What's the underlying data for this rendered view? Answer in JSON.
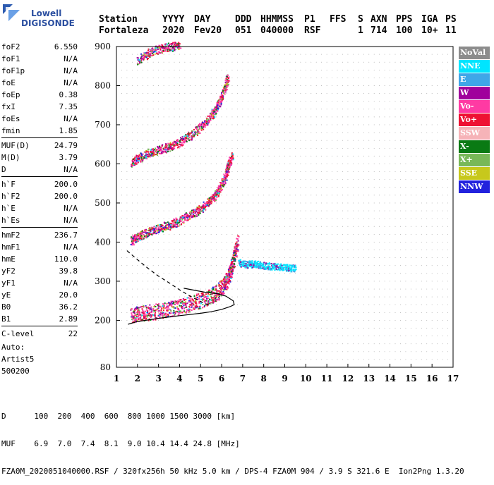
{
  "logo": {
    "line1": "Lowell",
    "line2": "DIGISONDE"
  },
  "header": {
    "row1": [
      "Station",
      "YYYY",
      "DAY",
      "DDD",
      "HHMMSS",
      "P1",
      "FFS",
      "S",
      "AXN",
      "PPS",
      "IGA",
      "PS"
    ],
    "row2": [
      "Fortaleza",
      "2020",
      "Fev20",
      "051",
      "040000",
      "RSF",
      "",
      "1",
      "714",
      "100",
      "10+",
      "11"
    ]
  },
  "params_groups": [
    [
      [
        "foF2",
        "6.550"
      ],
      [
        "foF1",
        "N/A"
      ],
      [
        "foF1p",
        "N/A"
      ],
      [
        "foE",
        "N/A"
      ],
      [
        "foEp",
        "0.38"
      ],
      [
        "fxI",
        "7.35"
      ],
      [
        "foEs",
        "N/A"
      ],
      [
        "fmin",
        "1.85"
      ]
    ],
    [
      [
        "MUF(D)",
        "24.79"
      ],
      [
        "M(D)",
        "3.79"
      ],
      [
        "D",
        "N/A"
      ]
    ],
    [
      [
        "h`F",
        "200.0"
      ],
      [
        "h`F2",
        "200.0"
      ],
      [
        "h`E",
        "N/A"
      ],
      [
        "h`Es",
        "N/A"
      ]
    ],
    [
      [
        "hmF2",
        "236.7"
      ],
      [
        "hmF1",
        "N/A"
      ],
      [
        "hmE",
        "110.0"
      ],
      [
        "yF2",
        "39.8"
      ],
      [
        "yF1",
        "N/A"
      ],
      [
        "yE",
        "20.0"
      ],
      [
        "B0",
        "36.2"
      ],
      [
        "B1",
        "2.89"
      ]
    ],
    [
      [
        "C-level",
        "22"
      ]
    ]
  ],
  "auto": [
    "Auto:",
    "Artist5",
    "500200"
  ],
  "legend": [
    {
      "label": "NoVal",
      "color": "#8c8c8c"
    },
    {
      "label": "NNE",
      "color": "#00e5ff"
    },
    {
      "label": "E",
      "color": "#3fa6e8"
    },
    {
      "label": "W",
      "color": "#a0009c"
    },
    {
      "label": "Vo-",
      "color": "#ff3aa3"
    },
    {
      "label": "Vo+",
      "color": "#ee1133"
    },
    {
      "label": "SSW",
      "color": "#f6b3b8"
    },
    {
      "label": "X-",
      "color": "#0a7a14"
    },
    {
      "label": "X+",
      "color": "#78b858"
    },
    {
      "label": "SSE",
      "color": "#c7c81c"
    },
    {
      "label": "NNW",
      "color": "#2222dd"
    }
  ],
  "footer": {
    "line1": "D      100  200  400  600  800 1000 1500 3000 [km]",
    "line2": "MUF    6.9  7.0  7.4  8.1  9.0 10.4 14.4 24.8 [MHz]",
    "line3": "FZA0M_2020051040000.RSF / 320fx256h 50 kHz 5.0 km / DPS-4 FZA0M 904 / 3.9 S 321.6 E  Ion2Png 1.3.20"
  },
  "chart_data": {
    "type": "scatter",
    "xlim": [
      1,
      17
    ],
    "ylim": [
      80,
      900
    ],
    "x_ticks": [
      1,
      2,
      3,
      4,
      5,
      6,
      7,
      8,
      9,
      10,
      11,
      12,
      13,
      14,
      15,
      16,
      17
    ],
    "y_ticks": [
      200,
      300,
      400,
      500,
      600,
      700,
      800,
      900
    ],
    "y_tick_labels": [
      "200",
      "300",
      "400",
      "500",
      "600",
      "700",
      "800",
      "900"
    ],
    "ymin_label": "80",
    "traces": [
      {
        "name": "trace-1",
        "points": [
          [
            1.7,
            205
          ],
          [
            2.0,
            210
          ],
          [
            2.5,
            213
          ],
          [
            3.0,
            217
          ],
          [
            3.5,
            222
          ],
          [
            4.0,
            228
          ],
          [
            4.5,
            236
          ],
          [
            5.0,
            244
          ],
          [
            5.5,
            256
          ],
          [
            5.8,
            266
          ],
          [
            6.1,
            282
          ],
          [
            6.3,
            300
          ],
          [
            6.45,
            325
          ],
          [
            6.6,
            360
          ],
          [
            6.75,
            395
          ]
        ]
      },
      {
        "name": "trace-2",
        "points": [
          [
            1.7,
            400
          ],
          [
            2.0,
            410
          ],
          [
            2.5,
            423
          ],
          [
            3.0,
            432
          ],
          [
            3.5,
            440
          ],
          [
            4.0,
            452
          ],
          [
            4.5,
            466
          ],
          [
            5.0,
            482
          ],
          [
            5.5,
            505
          ],
          [
            5.8,
            525
          ],
          [
            6.1,
            555
          ],
          [
            6.3,
            590
          ],
          [
            6.5,
            620
          ]
        ]
      },
      {
        "name": "trace-3",
        "points": [
          [
            1.7,
            600
          ],
          [
            2.0,
            610
          ],
          [
            2.5,
            624
          ],
          [
            3.0,
            632
          ],
          [
            3.5,
            640
          ],
          [
            4.0,
            652
          ],
          [
            4.5,
            670
          ],
          [
            5.0,
            690
          ],
          [
            5.5,
            720
          ],
          [
            5.8,
            745
          ],
          [
            6.1,
            785
          ],
          [
            6.3,
            820
          ]
        ]
      },
      {
        "name": "trace-4",
        "points": [
          [
            2.0,
            860
          ],
          [
            2.5,
            880
          ],
          [
            3.0,
            890
          ],
          [
            3.5,
            895
          ],
          [
            4.0,
            900
          ]
        ]
      },
      {
        "name": "trace-5-nnw",
        "points": [
          [
            6.8,
            345
          ],
          [
            7.2,
            340
          ],
          [
            7.6,
            342
          ],
          [
            8.0,
            338
          ],
          [
            8.5,
            335
          ],
          [
            9.0,
            333
          ],
          [
            9.5,
            330
          ]
        ]
      }
    ],
    "profile_curve": [
      [
        1.55,
        190
      ],
      [
        2.0,
        197
      ],
      [
        3.0,
        205
      ],
      [
        4.0,
        212
      ],
      [
        5.0,
        218
      ],
      [
        5.5,
        222
      ],
      [
        6.0,
        228
      ],
      [
        6.4,
        235
      ],
      [
        6.6,
        240
      ],
      [
        6.55,
        250
      ],
      [
        6.2,
        262
      ],
      [
        5.8,
        268
      ],
      [
        5.2,
        272
      ],
      [
        4.6,
        278
      ],
      [
        4.2,
        282
      ]
    ],
    "dashed_curve": [
      [
        1.5,
        378
      ],
      [
        2.0,
        355
      ],
      [
        2.5,
        333
      ],
      [
        3.0,
        313
      ],
      [
        3.5,
        296
      ],
      [
        4.0,
        278
      ],
      [
        4.5,
        262
      ],
      [
        5.0,
        248
      ],
      [
        5.5,
        236
      ]
    ]
  }
}
